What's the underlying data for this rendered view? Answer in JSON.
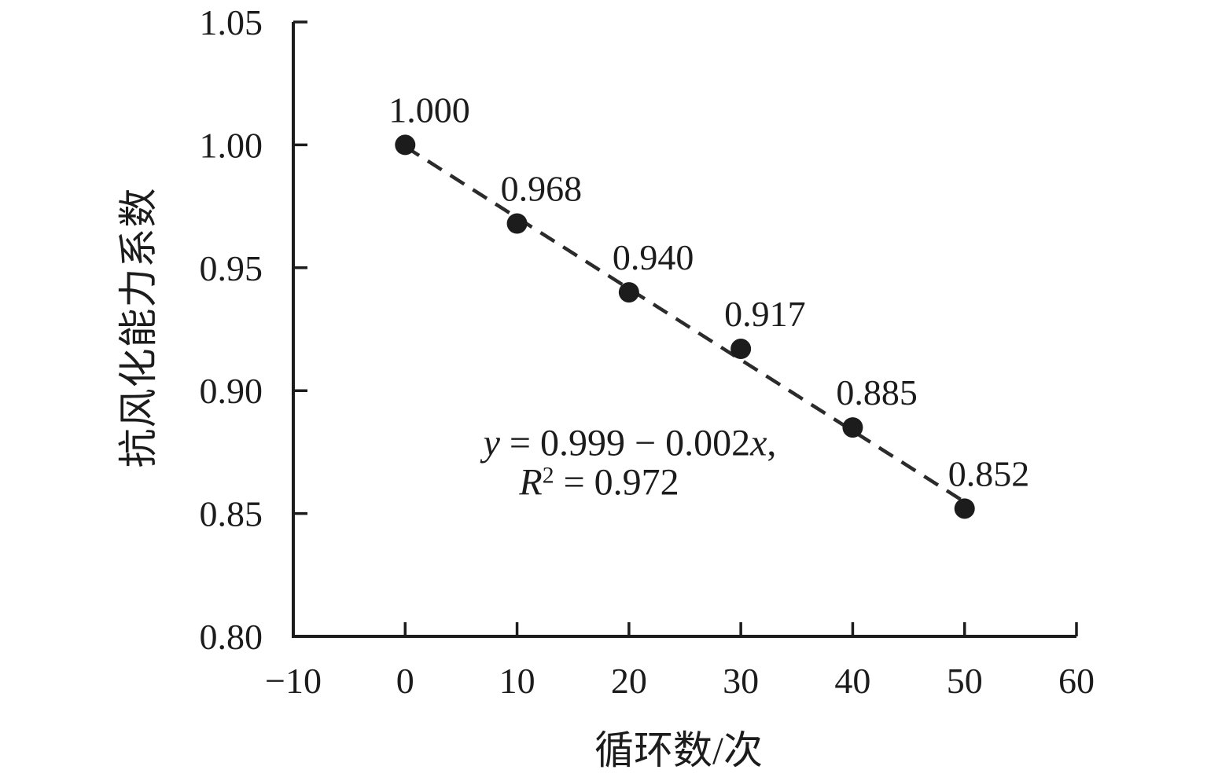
{
  "figure": {
    "background": "#ffffff"
  },
  "chart_data": {
    "type": "scatter",
    "title": "",
    "xlabel": "循环数/次",
    "ylabel": "抗风化能力系数",
    "x": [
      0,
      10,
      20,
      30,
      40,
      50
    ],
    "y": [
      1.0,
      0.968,
      0.94,
      0.917,
      0.885,
      0.852
    ],
    "point_labels": [
      "1.000",
      "0.968",
      "0.940",
      "0.917",
      "0.885",
      "0.852"
    ],
    "xlim": [
      -10,
      60
    ],
    "ylim": [
      0.8,
      1.05
    ],
    "xticks": [
      -10,
      0,
      10,
      20,
      30,
      40,
      50,
      60
    ],
    "xtick_labels": [
      "−10",
      "0",
      "10",
      "20",
      "30",
      "40",
      "50",
      "60"
    ],
    "yticks": [
      0.8,
      0.85,
      0.9,
      0.95,
      1.0,
      1.05
    ],
    "ytick_labels": [
      "0.80",
      "0.85",
      "0.90",
      "0.95",
      "1.00",
      "1.05"
    ],
    "grid": false,
    "legend": null,
    "marker": {
      "shape": "circle",
      "color": "#1c1c1c"
    },
    "trendline": {
      "style": "dashed",
      "color": "#2b2b2b",
      "x_start": 0,
      "y_start": 0.9993,
      "x_end": 50,
      "y_end": 0.8547,
      "equation_text": "y = 0.999 − 0.002x, R² = 0.972"
    },
    "annotation": {
      "line1_segments": [
        {
          "t": "y",
          "italic": true
        },
        {
          "t": " = 0.999 − 0.002",
          "italic": false
        },
        {
          "t": "x",
          "italic": true
        },
        {
          "t": ",",
          "italic": false
        }
      ],
      "line2_segments": [
        {
          "t": "R",
          "italic": true
        },
        {
          "t": "2",
          "italic": false,
          "sup": true
        },
        {
          "t": " = 0.972",
          "italic": false
        }
      ]
    },
    "colors": {
      "axis": "#1c1c1c",
      "text": "#1c1c1c",
      "point": "#1c1c1c",
      "trendline": "#2b2b2b",
      "background": "#ffffff"
    }
  }
}
